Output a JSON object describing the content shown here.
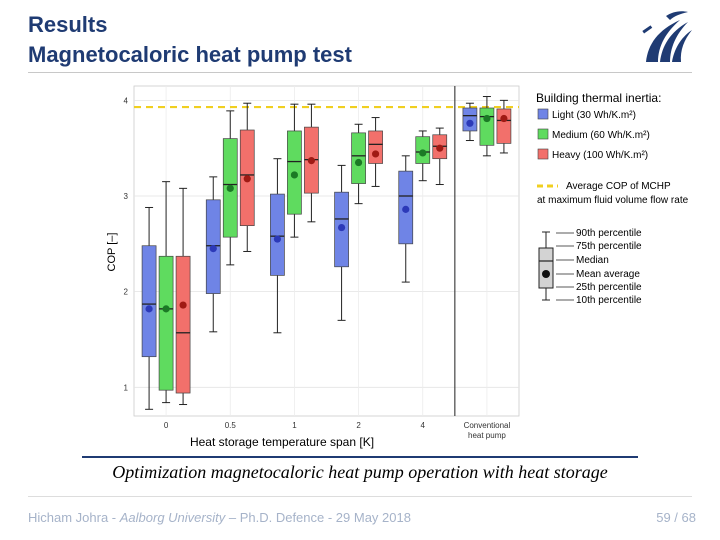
{
  "slide": {
    "title_line1": "Results",
    "title_line2": "Magnetocaloric heat pump test",
    "caption": "Optimization magnetocaloric heat pump operation with heat storage",
    "footer": {
      "author": "Hicham Johra - ",
      "institution": "Aalborg University",
      "rest": " – Ph.D. Defence - 29 May 2018",
      "page": "59",
      "total": "68"
    }
  },
  "colors": {
    "title": "#1f3b73",
    "light": "#6f84e6",
    "medium": "#5fdb5f",
    "heavy": "#f2706b",
    "light_dot": "#2c39b8",
    "medium_dot": "#1b7a25",
    "heavy_dot": "#a01a14",
    "reference": "#f0cf20",
    "footer": "#a6b3c9"
  },
  "chart_data": {
    "type": "box",
    "ylabel": "COP [–]",
    "xlabel": "Heat storage temperature span [K]",
    "ylim": [
      0.7,
      4.15
    ],
    "yticks": [
      1,
      2,
      3,
      4
    ],
    "grid": true,
    "categories": [
      "0",
      "0.5",
      "1",
      "2",
      "4",
      "Conventional heat pump"
    ],
    "reference_line": {
      "value": 3.93,
      "label": "Average COP of MCHP at maximum fluid volume flow rate"
    },
    "legend": {
      "title": "Building thermal inertia:",
      "entries": [
        "Light (30 Wh/K.m²)",
        "Medium (60 Wh/K.m²)",
        "Heavy  (100 Wh/K.m²)"
      ],
      "reference_label_1": "Average COP of MCHP",
      "reference_label_2": "at maximum fluid volume flow rate",
      "percentiles": [
        "90th percentile",
        "75th percentile",
        "Median",
        "Mean average",
        "25th percentile",
        "10th percentile"
      ]
    },
    "series": [
      {
        "name": "Light (30 Wh/K.m²)",
        "boxes": [
          {
            "p10": 0.77,
            "q1": 1.32,
            "median": 1.87,
            "q3": 2.48,
            "p90": 2.88,
            "mean": 1.82
          },
          {
            "p10": 1.58,
            "q1": 1.98,
            "median": 2.48,
            "q3": 2.96,
            "p90": 3.2,
            "mean": 2.45
          },
          {
            "p10": 1.57,
            "q1": 2.17,
            "median": 2.58,
            "q3": 3.02,
            "p90": 3.39,
            "mean": 2.55
          },
          {
            "p10": 1.7,
            "q1": 2.26,
            "median": 2.76,
            "q3": 3.04,
            "p90": 3.32,
            "mean": 2.67
          },
          {
            "p10": 2.1,
            "q1": 2.5,
            "median": 3.0,
            "q3": 3.26,
            "p90": 3.42,
            "mean": 2.86
          },
          {
            "p10": 3.58,
            "q1": 3.68,
            "median": 3.84,
            "q3": 3.92,
            "p90": 3.97,
            "mean": 3.76
          }
        ]
      },
      {
        "name": "Medium (60 Wh/K.m²)",
        "boxes": [
          {
            "p10": 0.84,
            "q1": 0.97,
            "median": 1.82,
            "q3": 2.37,
            "p90": 3.15,
            "mean": 1.82
          },
          {
            "p10": 2.28,
            "q1": 2.57,
            "median": 3.12,
            "q3": 3.6,
            "p90": 3.89,
            "mean": 3.08
          },
          {
            "p10": 2.57,
            "q1": 2.81,
            "median": 3.36,
            "q3": 3.68,
            "p90": 3.96,
            "mean": 3.22
          },
          {
            "p10": 2.92,
            "q1": 3.13,
            "median": 3.42,
            "q3": 3.66,
            "p90": 3.75,
            "mean": 3.35
          },
          {
            "p10": 3.16,
            "q1": 3.34,
            "median": 3.46,
            "q3": 3.62,
            "p90": 3.68,
            "mean": 3.45
          },
          {
            "p10": 3.42,
            "q1": 3.53,
            "median": 3.83,
            "q3": 3.92,
            "p90": 4.04,
            "mean": 3.81
          }
        ]
      },
      {
        "name": "Heavy  (100 Wh/K.m²)",
        "boxes": [
          {
            "p10": 0.82,
            "q1": 0.94,
            "median": 1.57,
            "q3": 2.37,
            "p90": 3.08,
            "mean": 1.86
          },
          {
            "p10": 2.42,
            "q1": 2.69,
            "median": 3.22,
            "q3": 3.69,
            "p90": 3.97,
            "mean": 3.18
          },
          {
            "p10": 2.73,
            "q1": 3.03,
            "median": 3.38,
            "q3": 3.72,
            "p90": 3.96,
            "mean": 3.37
          },
          {
            "p10": 3.1,
            "q1": 3.34,
            "median": 3.54,
            "q3": 3.68,
            "p90": 3.82,
            "mean": 3.44
          },
          {
            "p10": 3.12,
            "q1": 3.39,
            "median": 3.52,
            "q3": 3.64,
            "p90": 3.71,
            "mean": 3.5
          },
          {
            "p10": 3.45,
            "q1": 3.55,
            "median": 3.79,
            "q3": 3.91,
            "p90": 4.0,
            "mean": 3.81
          }
        ]
      }
    ]
  }
}
